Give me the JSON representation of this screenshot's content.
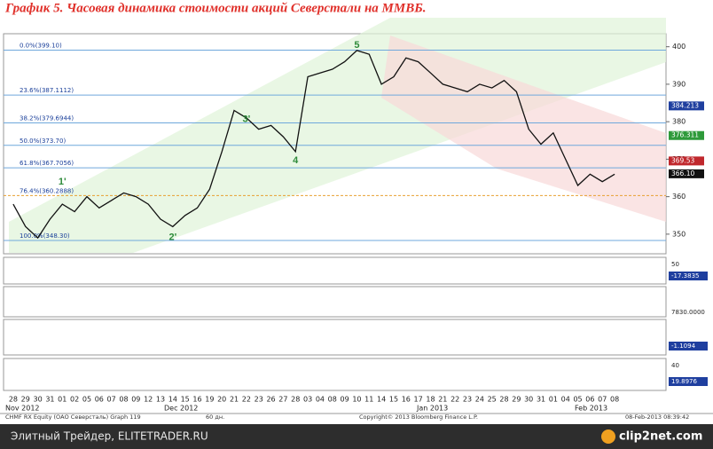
{
  "chart_data": {
    "type": "line",
    "title": "График 5.   Часовая динамика стоимости акций Северстали на ММВБ.",
    "categories": [
      "28",
      "29",
      "30",
      "31",
      "01",
      "02",
      "05",
      "06",
      "07",
      "08",
      "09",
      "12",
      "13",
      "14",
      "15",
      "16",
      "19",
      "20",
      "21",
      "22",
      "23",
      "26",
      "27",
      "28",
      "03",
      "04",
      "08",
      "09",
      "10",
      "11",
      "14",
      "15",
      "16",
      "17",
      "18",
      "21",
      "22",
      "23",
      "24",
      "25",
      "28",
      "29",
      "30",
      "31",
      "01",
      "04",
      "05",
      "06",
      "07",
      "08"
    ],
    "months": [
      "Nov 2012",
      "Dec 2012",
      "Jan 2013",
      "Feb 2013"
    ],
    "series": [
      {
        "color": "#111111",
        "values": [
          358,
          352,
          349,
          354,
          358,
          356,
          360,
          357,
          359,
          361,
          360,
          358,
          354,
          352,
          355,
          357,
          362,
          372,
          383,
          381,
          378,
          379,
          376,
          372,
          392,
          393,
          394,
          396,
          399,
          398,
          390,
          392,
          397,
          396,
          393,
          390,
          389,
          388,
          390,
          389,
          391,
          388,
          378,
          374,
          377,
          370,
          363,
          366,
          364,
          366
        ]
      }
    ],
    "ylim": [
      345,
      403
    ],
    "yticks": [
      350,
      360,
      370,
      380,
      390,
      400
    ],
    "fib_levels": [
      {
        "value": 399.1,
        "label": "0.0%(399.10)"
      },
      {
        "value": 387.1112,
        "label": "23.6%(387.1112)"
      },
      {
        "value": 379.6944,
        "label": "38.2%(379.6944)"
      },
      {
        "value": 373.7,
        "label": "50.0%(373.70)"
      },
      {
        "value": 367.7056,
        "label": "61.8%(367.7056)"
      },
      {
        "value": 360.2888,
        "label": "76.4%(360.2888)"
      },
      {
        "value": 348.3,
        "label": "100.0%(348.30)"
      }
    ],
    "price_tags": [
      {
        "value": 384.213,
        "label": "384.213",
        "color": "#1f3f9f"
      },
      {
        "value": 376.311,
        "label": "376.311",
        "color": "#2e9a3a"
      },
      {
        "value": 369.53,
        "label": "369.53",
        "color": "#c0282d"
      },
      {
        "value": 366.1,
        "label": "366.10",
        "color": "#111111"
      }
    ],
    "waves": [
      "1'",
      "2'",
      "3'",
      "4",
      "5"
    ],
    "panel_labels": [
      "50",
      "-17.3835",
      "7830.0000",
      "-1.1094",
      "40",
      "19.8976"
    ],
    "footer": [
      "CHMF RX Equity (ОАО Северсталь) Graph 119",
      "60 дн.",
      "Copyright© 2013 Bloomberg Finance L.P.",
      "08-Feb-2013 08:39:42"
    ],
    "credit": "Элитный Трейдер, ELITETRADER.RU",
    "watermark": "clip2net.com"
  }
}
